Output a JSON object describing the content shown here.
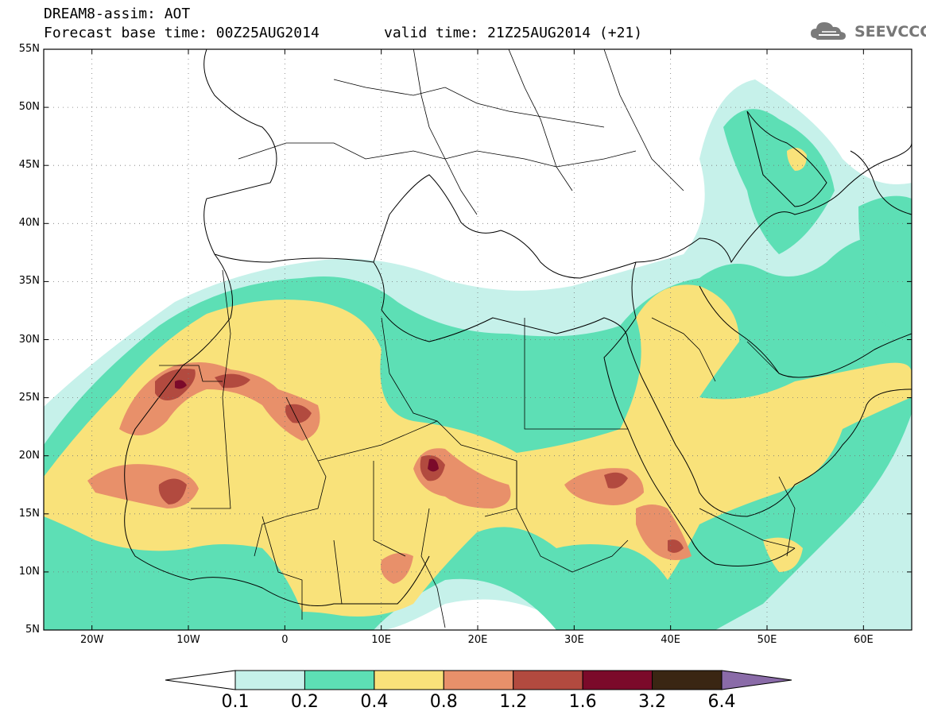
{
  "header": {
    "title": "DREAM8-assim: AOT",
    "base_time": "Forecast base time: 00Z25AUG2014",
    "valid_time": "valid time: 21Z25AUG2014 (+21)"
  },
  "logo": {
    "text": "SEEVCCC",
    "icon": "cloud-icon"
  },
  "map": {
    "lat_range": [
      5,
      55
    ],
    "lon_range": [
      -25,
      65
    ],
    "lat_ticks": [
      "55N",
      "50N",
      "45N",
      "40N",
      "35N",
      "30N",
      "25N",
      "20N",
      "15N",
      "10N",
      "5N"
    ],
    "lon_ticks": [
      "20W",
      "10W",
      "0",
      "10E",
      "20E",
      "30E",
      "40E",
      "50E",
      "60E"
    ]
  },
  "legend": {
    "levels": [
      "0.1",
      "0.2",
      "0.4",
      "0.8",
      "1.2",
      "1.6",
      "3.2",
      "6.4"
    ],
    "colors": [
      "#ffffff",
      "#c6f1ea",
      "#5ddfb5",
      "#f9e27a",
      "#e8906a",
      "#b24a3f",
      "#7b0a2a",
      "#3a2613",
      "#8a6ba8"
    ]
  }
}
